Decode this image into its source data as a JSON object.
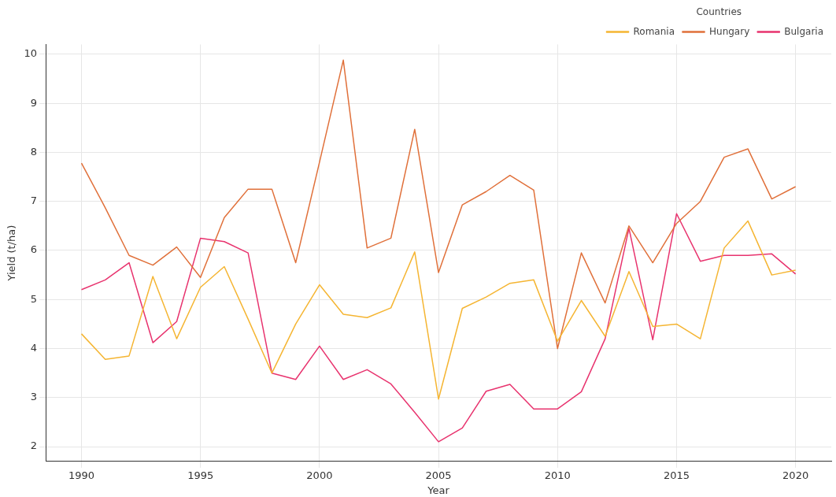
{
  "chart_data": {
    "type": "line",
    "xlabel": "Year",
    "ylabel": "Yield (t/ha)",
    "legend_title": "Countries",
    "legend": "top right",
    "grid": true,
    "x": [
      1990,
      1991,
      1992,
      1993,
      1994,
      1995,
      1996,
      1997,
      1998,
      1999,
      2000,
      2001,
      2002,
      2003,
      2004,
      2005,
      2006,
      2007,
      2008,
      2009,
      2010,
      2011,
      2012,
      2013,
      2014,
      2015,
      2016,
      2017,
      2018,
      2019,
      2020
    ],
    "xlim": [
      1988.5,
      2021.5
    ],
    "xticks": [
      1990,
      1995,
      2000,
      2005,
      2010,
      2015,
      2020
    ],
    "ylim": [
      1.7,
      10.2
    ],
    "yticks": [
      2,
      3,
      4,
      5,
      6,
      7,
      8,
      9,
      10
    ],
    "series": [
      {
        "name": "Romania",
        "color": "#f5b532",
        "values": [
          4.3,
          3.78,
          3.85,
          5.47,
          4.2,
          5.25,
          5.67,
          4.6,
          3.5,
          4.5,
          5.3,
          4.7,
          4.63,
          4.83,
          5.97,
          2.97,
          4.82,
          5.05,
          5.33,
          5.4,
          4.15,
          4.98,
          4.25,
          5.57,
          4.45,
          4.5,
          4.2,
          6.05,
          6.6,
          5.5,
          5.6
        ]
      },
      {
        "name": "Hungary",
        "color": "#e0703a",
        "values": [
          7.78,
          6.87,
          5.9,
          5.7,
          6.07,
          5.45,
          6.67,
          7.25,
          7.25,
          5.75,
          7.8,
          9.88,
          6.05,
          6.25,
          8.47,
          5.55,
          6.93,
          7.2,
          7.53,
          7.23,
          4.0,
          5.95,
          4.93,
          6.5,
          5.75,
          6.55,
          7.0,
          7.9,
          8.07,
          7.05,
          7.3
        ]
      },
      {
        "name": "Bulgaria",
        "color": "#e8336e",
        "values": [
          5.2,
          5.4,
          5.75,
          4.12,
          4.55,
          6.25,
          6.18,
          5.95,
          3.5,
          3.37,
          4.05,
          3.37,
          3.57,
          3.28,
          2.7,
          2.1,
          2.38,
          3.13,
          3.27,
          2.77,
          2.77,
          3.12,
          4.2,
          6.45,
          4.18,
          6.75,
          5.78,
          5.9,
          5.9,
          5.93,
          5.52
        ]
      }
    ]
  }
}
